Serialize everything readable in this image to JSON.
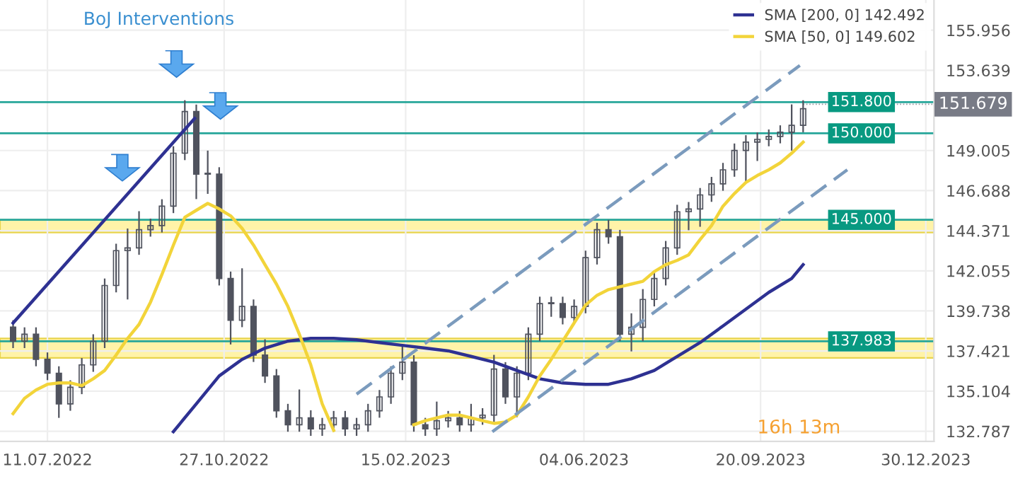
{
  "chart_data": {
    "type": "candlestick",
    "x": [
      "2022-06-20",
      "2022-06-27",
      "2022-07-04",
      "2022-07-11",
      "2022-07-18",
      "2022-07-25",
      "2022-08-01",
      "2022-08-08",
      "2022-08-15",
      "2022-08-22",
      "2022-08-29",
      "2022-09-05",
      "2022-09-12",
      "2022-09-19",
      "2022-09-26",
      "2022-10-03",
      "2022-10-10",
      "2022-10-17",
      "2022-10-24",
      "2022-10-31",
      "2022-11-07",
      "2022-11-14",
      "2022-11-21",
      "2022-11-28",
      "2022-12-05",
      "2022-12-12",
      "2022-12-19",
      "2022-12-26",
      "2023-01-02",
      "2023-01-09",
      "2023-01-16",
      "2023-01-23",
      "2023-01-30",
      "2023-02-06",
      "2023-02-13",
      "2023-02-20",
      "2023-02-27",
      "2023-03-06",
      "2023-03-13",
      "2023-03-20",
      "2023-03-27",
      "2023-04-03",
      "2023-04-10",
      "2023-04-17",
      "2023-04-24",
      "2023-05-01",
      "2023-05-08",
      "2023-05-15",
      "2023-05-22",
      "2023-05-29",
      "2023-06-05",
      "2023-06-12",
      "2023-06-19",
      "2023-06-26",
      "2023-07-03",
      "2023-07-10",
      "2023-07-17",
      "2023-07-24",
      "2023-07-31",
      "2023-08-07",
      "2023-08-14",
      "2023-08-21",
      "2023-08-28",
      "2023-09-04",
      "2023-09-11",
      "2023-09-18",
      "2023-09-25",
      "2023-10-02",
      "2023-10-09",
      "2023-10-16"
    ],
    "ohlc": [
      [
        138.8,
        139.2,
        137.59,
        137.99
      ],
      [
        137.99,
        138.79,
        137.59,
        138.39
      ],
      [
        138.39,
        138.79,
        136.54,
        136.94
      ],
      [
        136.94,
        137.34,
        135.74,
        136.14
      ],
      [
        136.14,
        136.54,
        133.56,
        134.37
      ],
      [
        134.37,
        135.73,
        133.97,
        135.33
      ],
      [
        135.33,
        137.02,
        134.93,
        136.62
      ],
      [
        136.62,
        138.39,
        136.22,
        137.99
      ],
      [
        137.99,
        141.61,
        137.59,
        141.21
      ],
      [
        141.21,
        143.62,
        140.81,
        143.22
      ],
      [
        143.22,
        144.5,
        140.4,
        143.38
      ],
      [
        143.38,
        145.5,
        142.98,
        144.43
      ],
      [
        144.43,
        145.07,
        144.03,
        144.67
      ],
      [
        144.67,
        146.19,
        144.27,
        145.79
      ],
      [
        145.79,
        149.25,
        145.39,
        148.85
      ],
      [
        148.85,
        151.91,
        148.45,
        151.26
      ],
      [
        151.26,
        151.66,
        146.2,
        147.64
      ],
      [
        147.64,
        149.0,
        146.5,
        147.64
      ],
      [
        147.64,
        148.04,
        141.21,
        141.61
      ],
      [
        141.61,
        142.01,
        137.8,
        139.2
      ],
      [
        139.2,
        142.2,
        138.8,
        140.0
      ],
      [
        140.0,
        140.4,
        136.79,
        137.19
      ],
      [
        137.19,
        138.1,
        135.58,
        135.98
      ],
      [
        135.98,
        136.38,
        133.57,
        133.97
      ],
      [
        133.97,
        134.37,
        132.76,
        133.16
      ],
      [
        133.16,
        135.2,
        132.76,
        133.56
      ],
      [
        133.56,
        134.0,
        132.52,
        132.92
      ],
      [
        132.92,
        133.56,
        132.52,
        133.16
      ],
      [
        133.16,
        133.96,
        132.76,
        133.56
      ],
      [
        133.56,
        133.96,
        132.52,
        132.92
      ],
      [
        132.92,
        133.56,
        132.52,
        133.16
      ],
      [
        133.16,
        134.37,
        132.76,
        133.97
      ],
      [
        133.97,
        135.17,
        133.57,
        134.77
      ],
      [
        134.77,
        136.54,
        134.37,
        136.14
      ],
      [
        136.14,
        137.83,
        135.74,
        136.78
      ],
      [
        136.78,
        137.18,
        132.76,
        133.16
      ],
      [
        133.16,
        133.56,
        132.52,
        132.92
      ],
      [
        132.92,
        134.5,
        132.52,
        133.4
      ],
      [
        133.4,
        133.96,
        133.0,
        133.56
      ],
      [
        133.56,
        133.96,
        132.76,
        133.16
      ],
      [
        133.16,
        134.37,
        132.76,
        133.56
      ],
      [
        133.56,
        134.12,
        133.16,
        133.72
      ],
      [
        133.72,
        137.2,
        133.32,
        136.38
      ],
      [
        136.38,
        136.78,
        134.37,
        134.77
      ],
      [
        134.77,
        136.54,
        133.6,
        136.14
      ],
      [
        136.14,
        138.79,
        135.74,
        138.39
      ],
      [
        138.39,
        140.56,
        137.99,
        140.16
      ],
      [
        140.16,
        140.56,
        139.4,
        140.16
      ],
      [
        140.16,
        140.56,
        138.96,
        139.36
      ],
      [
        139.36,
        140.4,
        138.96,
        140.0
      ],
      [
        140.0,
        143.22,
        139.6,
        142.82
      ],
      [
        142.82,
        144.83,
        142.42,
        144.43
      ],
      [
        144.43,
        145.0,
        143.62,
        144.02
      ],
      [
        144.02,
        144.42,
        137.99,
        138.39
      ],
      [
        138.39,
        139.6,
        137.4,
        138.79
      ],
      [
        138.79,
        141.0,
        137.99,
        140.4
      ],
      [
        140.4,
        142.01,
        140.0,
        141.61
      ],
      [
        141.61,
        143.78,
        141.21,
        143.38
      ],
      [
        143.38,
        145.87,
        142.98,
        145.47
      ],
      [
        145.47,
        146.03,
        144.4,
        145.63
      ],
      [
        145.63,
        146.84,
        144.6,
        146.44
      ],
      [
        146.44,
        147.48,
        146.04,
        147.08
      ],
      [
        147.08,
        148.29,
        146.68,
        147.89
      ],
      [
        147.89,
        149.41,
        147.49,
        149.01
      ],
      [
        149.01,
        149.89,
        147.24,
        149.49
      ],
      [
        149.49,
        150.05,
        148.4,
        149.65
      ],
      [
        149.65,
        150.22,
        149.25,
        149.82
      ],
      [
        149.82,
        150.46,
        149.42,
        150.06
      ],
      [
        150.06,
        151.67,
        149.0,
        150.46
      ],
      [
        150.46,
        151.91,
        150.06,
        151.42
      ]
    ],
    "series": [
      {
        "type": "line",
        "name": "SMA [200, 0] 142.492",
        "color": "#2e3192",
        "x": [
          "2022-09-26",
          "2022-10-10",
          "2022-10-24",
          "2022-11-07",
          "2022-11-21",
          "2022-12-05",
          "2022-12-19",
          "2023-01-02",
          "2023-01-16",
          "2023-01-30",
          "2023-02-13",
          "2023-02-27",
          "2023-03-13",
          "2023-03-27",
          "2023-04-10",
          "2023-04-24",
          "2023-05-08",
          "2023-05-22",
          "2023-06-05",
          "2023-06-19",
          "2023-07-03",
          "2023-07-17",
          "2023-07-31",
          "2023-08-14",
          "2023-08-28",
          "2023-09-11",
          "2023-09-25",
          "2023-10-09",
          "2023-10-16"
        ],
        "values": [
          132.76,
          134.37,
          135.98,
          136.94,
          137.59,
          137.99,
          138.15,
          138.15,
          138.07,
          137.91,
          137.75,
          137.59,
          137.43,
          137.11,
          136.78,
          136.3,
          135.82,
          135.58,
          135.5,
          135.5,
          135.82,
          136.3,
          137.11,
          137.91,
          138.87,
          139.84,
          140.81,
          141.61,
          142.41
        ]
      },
      {
        "type": "line",
        "name": "SMA [50, 0] 149.602",
        "color": "#f2d43a",
        "x": [
          "2022-06-20",
          "2022-06-27",
          "2022-07-04",
          "2022-07-11",
          "2022-07-18",
          "2022-07-25",
          "2022-08-01",
          "2022-08-08",
          "2022-08-15",
          "2022-08-22",
          "2022-08-29",
          "2022-09-05",
          "2022-09-12",
          "2022-09-19",
          "2022-09-26",
          "2022-10-03",
          "2022-10-10",
          "2022-10-17",
          "2022-10-24",
          "2022-10-31",
          "2022-11-07",
          "2022-11-14",
          "2022-11-21",
          "2022-11-28",
          "2022-12-05",
          "2022-12-12",
          "2022-12-19",
          "2022-12-26",
          "2023-01-02",
          "2023-01-09",
          "2023-01-16",
          "2023-01-23",
          "2023-01-30",
          "2023-02-06",
          "2023-02-13",
          "2023-02-20",
          "2023-02-27",
          "2023-03-06",
          "2023-03-13",
          "2023-03-20",
          "2023-03-27",
          "2023-04-03",
          "2023-04-10",
          "2023-04-17",
          "2023-04-24",
          "2023-05-01",
          "2023-05-08",
          "2023-05-15",
          "2023-05-22",
          "2023-05-29",
          "2023-06-05",
          "2023-06-12",
          "2023-06-19",
          "2023-06-26",
          "2023-07-03",
          "2023-07-10",
          "2023-07-17",
          "2023-07-24",
          "2023-07-31",
          "2023-08-07",
          "2023-08-14",
          "2023-08-21",
          "2023-08-28",
          "2023-09-04",
          "2023-09-11",
          "2023-09-18",
          "2023-09-25",
          "2023-10-02",
          "2023-10-09",
          "2023-10-16"
        ],
        "values": [
          133.81,
          134.69,
          135.17,
          135.5,
          135.58,
          135.58,
          135.42,
          135.82,
          136.3,
          137.19,
          138.15,
          138.96,
          140.24,
          141.85,
          143.54,
          145.15,
          145.55,
          145.95,
          145.63,
          145.23,
          144.51,
          143.54,
          142.41,
          141.29,
          140.0,
          138.39,
          136.62,
          134.37,
          132.84,
          null,
          null,
          null,
          null,
          null,
          null,
          133.16,
          133.4,
          133.56,
          133.72,
          133.72,
          133.56,
          133.4,
          133.24,
          133.32,
          133.72,
          134.77,
          135.98,
          136.94,
          137.99,
          139.04,
          140.08,
          140.64,
          140.97,
          141.13,
          141.29,
          141.45,
          142.01,
          142.41,
          142.66,
          142.98,
          143.86,
          144.67,
          145.79,
          146.52,
          147.16,
          147.56,
          147.89,
          148.29,
          148.85,
          149.49
        ]
      },
      {
        "type": "line",
        "color": "#2e3192",
        "line_style": "solid",
        "x": [
          "2022-06-20",
          "2022-10-09"
        ],
        "values": [
          139.04,
          150.86
        ]
      },
      {
        "type": "line",
        "color": "#7b9bbd",
        "line_style": "dashed",
        "x": [
          "2023-01-16",
          "2023-10-14"
        ],
        "values": [
          134.93,
          153.92
        ]
      },
      {
        "type": "line",
        "color": "#7b9bbd",
        "line_style": "dashed",
        "x": [
          "2023-04-09",
          "2023-11-12"
        ],
        "values": [
          132.76,
          147.89
        ]
      }
    ],
    "ref_lines": [
      {
        "axis": "y",
        "value": 151.8,
        "label": "151.800",
        "color": "#26a69a"
      },
      {
        "axis": "y",
        "value": 150.0,
        "label": "150.000",
        "color": "#26a69a"
      },
      {
        "axis": "y",
        "value": 145.0,
        "label": "145.000",
        "color": "#26a69a"
      },
      {
        "axis": "y",
        "value": 137.983,
        "label": "137.983",
        "color": "#26a69a"
      }
    ],
    "bands": [
      {
        "axis": "y",
        "from": 144.27,
        "to": 144.99,
        "color": "#fff3a8"
      },
      {
        "axis": "y",
        "from": 137.02,
        "to": 138.15,
        "color": "#fff3a8"
      }
    ],
    "annotations": [
      "BoJ Interventions",
      "16h 13m",
      {
        "text": "151.679",
        "x": "2023-10-16",
        "y": 151.679
      }
    ],
    "xlim": [
      "2022-06-12",
      "2024-01-04"
    ],
    "ylim": [
      132.2,
      157.7
    ],
    "xticks": [
      {
        "value": "2022-07-11",
        "label": "11.07.2022"
      },
      {
        "value": "2022-10-27",
        "label": "27.10.2022"
      },
      {
        "value": "2023-02-15",
        "label": "15.02.2023"
      },
      {
        "value": "2023-06-04",
        "label": "04.06.2023"
      },
      {
        "value": "2023-09-20",
        "label": "20.09.2023"
      },
      {
        "value": "2023-12-30",
        "label": "30.12.2023"
      }
    ],
    "yticks": [
      132.787,
      135.104,
      137.421,
      139.738,
      142.055,
      144.371,
      146.688,
      149.005,
      153.639,
      155.956
    ],
    "grid": true,
    "legend": "top right",
    "marker": "none"
  }
}
